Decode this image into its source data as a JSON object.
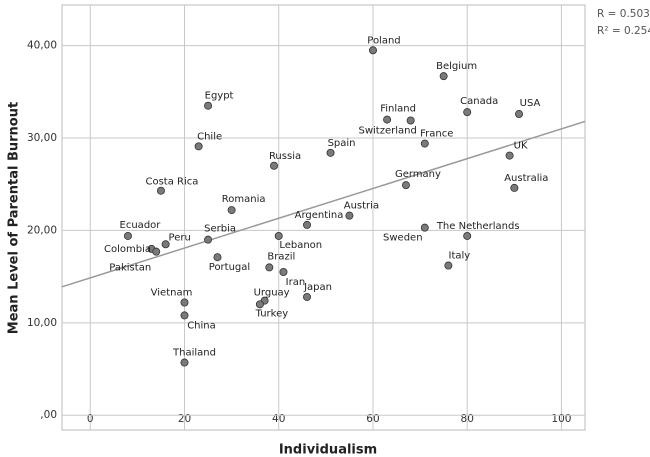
{
  "chart_data": {
    "type": "scatter",
    "x_label": "Individualism",
    "y_label": "Mean Level of Parental Burnout",
    "annotations": [
      "R = 0.503",
      "R² = 0.254"
    ],
    "point_labels": [
      "Poland",
      "Belgium",
      "Egypt",
      "Canada",
      "USA",
      "Finland",
      "Switzerland",
      "Chile",
      "France",
      "Spain",
      "UK",
      "Russia",
      "Germany",
      "Australia",
      "Costa Rica",
      "Romania",
      "Austria",
      "Argentina",
      "Sweden",
      "The Netherlands",
      "Ecuador",
      "Lebanon",
      "Serbia",
      "Peru",
      "Colombia",
      "Pakistan",
      "Portugal",
      "Italy",
      "Brazil",
      "Iran",
      "Japan",
      "Urguay",
      "Turkey",
      "Vietnam",
      "China",
      "Thailand"
    ],
    "x": [
      60,
      75,
      25,
      80,
      91,
      63,
      68,
      23,
      71,
      51,
      89,
      39,
      67,
      90,
      15,
      30,
      55,
      46,
      71,
      80,
      8,
      40,
      25,
      16,
      13,
      14,
      27,
      76,
      38,
      41,
      46,
      37,
      36,
      20,
      20,
      20
    ],
    "y": [
      39.5,
      36.7,
      33.5,
      32.8,
      32.6,
      32.0,
      31.9,
      29.1,
      29.4,
      28.4,
      28.1,
      27.0,
      24.9,
      24.6,
      24.3,
      22.2,
      21.6,
      20.6,
      20.3,
      19.4,
      19.4,
      19.4,
      19.0,
      18.5,
      18.0,
      17.7,
      17.1,
      16.2,
      16.0,
      15.5,
      12.8,
      12.4,
      12.0,
      12.2,
      10.8,
      5.7
    ],
    "color": "#7a7a7a",
    "fit_line": {
      "x": [
        -6,
        105
      ],
      "y": [
        13.9,
        31.8
      ],
      "color": "#999999"
    },
    "xlim": [
      -6,
      105
    ],
    "ylim": [
      -1.6,
      44.4
    ],
    "xticks": [
      0,
      20,
      40,
      60,
      80,
      100
    ],
    "yticks": [
      {
        "value": 0,
        "label": ",00"
      },
      {
        "value": 10,
        "label": "10,00"
      },
      {
        "value": 20,
        "label": "20,00"
      },
      {
        "value": 30,
        "label": "30,00"
      },
      {
        "value": 40,
        "label": "40,00"
      }
    ],
    "grid": true
  }
}
